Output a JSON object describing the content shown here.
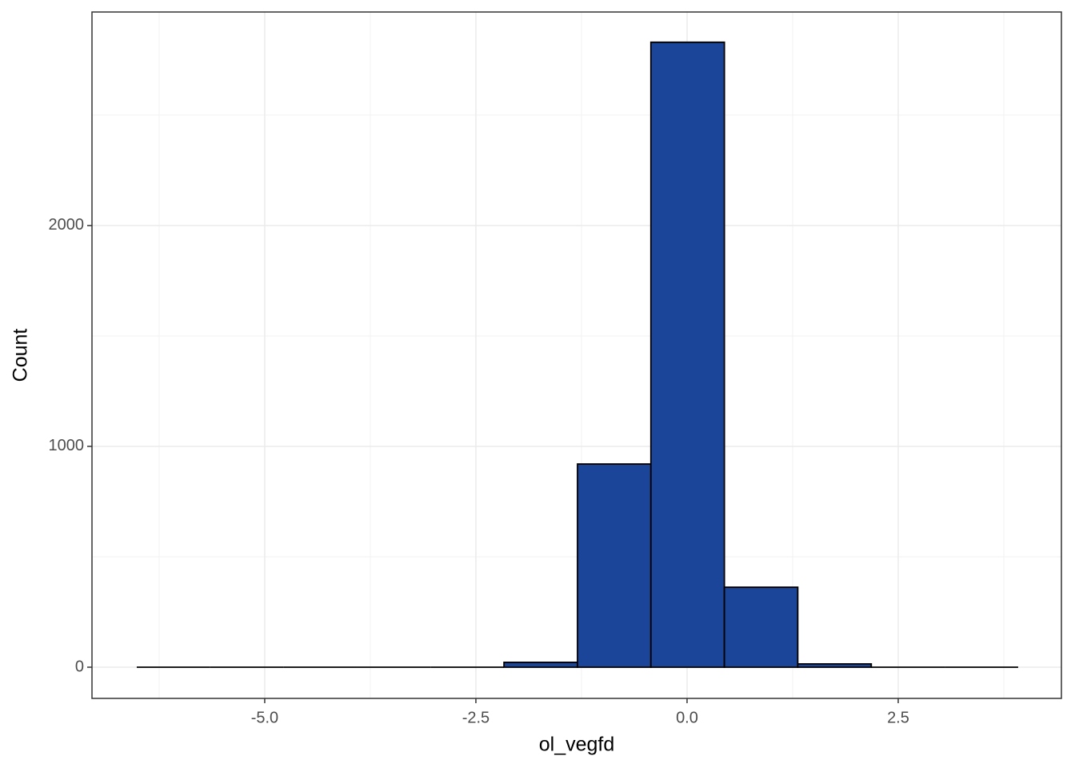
{
  "chart_data": {
    "type": "histogram",
    "x_label": "ol_vegfd",
    "y_label": "Count",
    "bins": [
      -6.515,
      -5.645,
      -4.776,
      -3.906,
      -3.037,
      -2.167,
      -1.297,
      -0.428,
      0.442,
      1.311,
      2.181,
      3.05,
      3.92
    ],
    "values": [
      0,
      0,
      0,
      0,
      0,
      22,
      920,
      2830,
      362,
      15,
      0,
      0
    ],
    "color": "#1a4599",
    "edge_color": "#000000",
    "xlim": [
      -7.045,
      4.432
    ],
    "xticks": [
      {
        "value": -5,
        "label": "-5.0"
      },
      {
        "value": -2.5,
        "label": "-2.5"
      },
      {
        "value": 0,
        "label": "0.0"
      },
      {
        "value": 2.5,
        "label": "2.5"
      }
    ],
    "ylim": [
      -141.3,
      2967
    ],
    "yticks": [
      0,
      1000,
      2000
    ],
    "grid": true
  }
}
